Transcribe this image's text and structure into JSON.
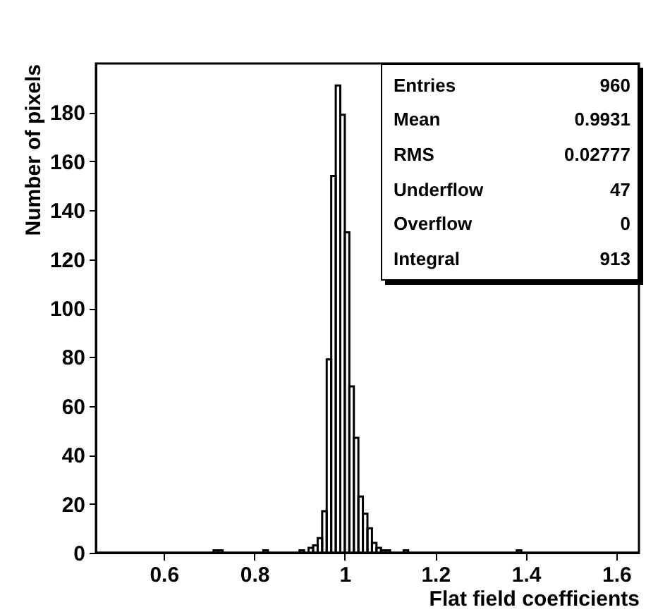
{
  "chart_data": {
    "type": "histogram",
    "xlabel": "Flat field coefficients",
    "ylabel": "Number of pixels",
    "color": "#000000",
    "bins": [
      0.45,
      0.71,
      0.72,
      0.73,
      0.82,
      0.83,
      0.9,
      0.91,
      0.92,
      0.93,
      0.94,
      0.95,
      0.96,
      0.97,
      0.98,
      0.99,
      1.0,
      1.01,
      1.02,
      1.03,
      1.04,
      1.05,
      1.06,
      1.07,
      1.08,
      1.09,
      1.1,
      1.13,
      1.14,
      1.38,
      1.39,
      1.65
    ],
    "values": [
      0,
      1,
      1,
      0,
      1,
      0,
      1,
      0,
      2,
      3,
      6,
      17,
      79,
      154,
      191,
      179,
      131,
      68,
      47,
      23,
      16,
      10,
      4,
      2,
      1,
      1,
      0,
      1,
      0,
      1,
      0
    ],
    "xlim": [
      0.45,
      1.65
    ],
    "xticks": [
      0.6,
      0.8,
      1,
      1.2,
      1.4,
      1.6
    ],
    "ylim": [
      0,
      200
    ],
    "yticks": [
      0,
      20,
      40,
      60,
      80,
      100,
      120,
      140,
      160,
      180
    ],
    "annotations": [
      "Entries",
      "960",
      "Mean",
      "0.9931",
      "RMS",
      "0.02777",
      "Underflow",
      "47",
      "Overflow",
      "0",
      "Integral",
      "913"
    ]
  }
}
